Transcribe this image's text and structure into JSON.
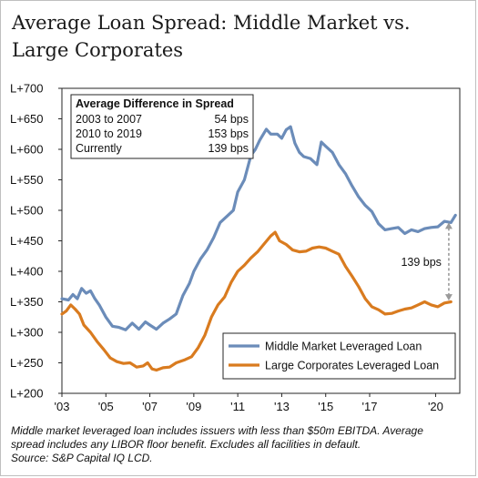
{
  "title": {
    "line1": "Average Loan Spread: Middle Market vs.",
    "line2": "Large Corporates"
  },
  "footnote": {
    "line1": "Middle market leveraged loan includes issuers with less than $50m EBITDA. Average",
    "line2": "spread includes any LIBOR floor benefit. Excludes all facilities in default.",
    "source": "Source: S&P Capital IQ LCD."
  },
  "chart_data": {
    "type": "line",
    "title": "Average Loan Spread: Middle Market vs. Large Corporates",
    "xlabel": "",
    "ylabel": "",
    "xlim": [
      2003,
      2021.1
    ],
    "ylim": [
      200,
      700
    ],
    "grid": false,
    "x_ticks": [
      2003,
      2005,
      2007,
      2009,
      2011,
      2013,
      2015,
      2017,
      2020
    ],
    "x_tick_labels": [
      "'03",
      "'05",
      "'07",
      "'09",
      "'11",
      "'13",
      "'15",
      "'17",
      "'20"
    ],
    "y_ticks": [
      200,
      250,
      300,
      350,
      400,
      450,
      500,
      550,
      600,
      650,
      700
    ],
    "y_tick_labels": [
      "L+200",
      "L+250",
      "L+300",
      "L+350",
      "L+400",
      "L+450",
      "L+500",
      "L+550",
      "L+600",
      "L+650",
      "L+700"
    ],
    "legend_position": "bottom-right",
    "series": [
      {
        "name": "Middle Market Leveraged Loan",
        "color": "#6b8cb9",
        "points": [
          [
            2003.0,
            355
          ],
          [
            2003.3,
            353
          ],
          [
            2003.5,
            362
          ],
          [
            2003.7,
            355
          ],
          [
            2003.9,
            372
          ],
          [
            2004.1,
            364
          ],
          [
            2004.3,
            368
          ],
          [
            2004.5,
            355
          ],
          [
            2004.7,
            345
          ],
          [
            2005.0,
            325
          ],
          [
            2005.3,
            310
          ],
          [
            2005.6,
            308
          ],
          [
            2005.9,
            304
          ],
          [
            2006.2,
            315
          ],
          [
            2006.5,
            305
          ],
          [
            2006.8,
            317
          ],
          [
            2007.0,
            312
          ],
          [
            2007.3,
            305
          ],
          [
            2007.6,
            315
          ],
          [
            2007.9,
            322
          ],
          [
            2008.2,
            330
          ],
          [
            2008.5,
            360
          ],
          [
            2008.8,
            380
          ],
          [
            2009.0,
            400
          ],
          [
            2009.3,
            420
          ],
          [
            2009.6,
            435
          ],
          [
            2009.9,
            455
          ],
          [
            2010.2,
            480
          ],
          [
            2010.5,
            490
          ],
          [
            2010.8,
            500
          ],
          [
            2011.0,
            530
          ],
          [
            2011.3,
            550
          ],
          [
            2011.6,
            590
          ],
          [
            2011.8,
            600
          ],
          [
            2012.0,
            615
          ],
          [
            2012.3,
            633
          ],
          [
            2012.5,
            625
          ],
          [
            2012.8,
            625
          ],
          [
            2013.0,
            618
          ],
          [
            2013.2,
            632
          ],
          [
            2013.4,
            637
          ],
          [
            2013.6,
            610
          ],
          [
            2013.8,
            595
          ],
          [
            2014.0,
            588
          ],
          [
            2014.3,
            585
          ],
          [
            2014.6,
            575
          ],
          [
            2014.8,
            612
          ],
          [
            2015.0,
            605
          ],
          [
            2015.3,
            595
          ],
          [
            2015.6,
            575
          ],
          [
            2015.9,
            560
          ],
          [
            2016.2,
            540
          ],
          [
            2016.5,
            522
          ],
          [
            2016.8,
            508
          ],
          [
            2017.1,
            498
          ],
          [
            2017.4,
            478
          ],
          [
            2017.7,
            468
          ],
          [
            2018.0,
            470
          ],
          [
            2018.3,
            472
          ],
          [
            2018.6,
            462
          ],
          [
            2018.9,
            468
          ],
          [
            2019.2,
            465
          ],
          [
            2019.5,
            470
          ],
          [
            2019.8,
            472
          ],
          [
            2020.1,
            473
          ],
          [
            2020.4,
            482
          ],
          [
            2020.7,
            480
          ],
          [
            2020.9,
            492
          ]
        ]
      },
      {
        "name": "Large Corporates Leveraged Loan",
        "color": "#d97b1f",
        "points": [
          [
            2003.0,
            330
          ],
          [
            2003.2,
            335
          ],
          [
            2003.4,
            345
          ],
          [
            2003.6,
            338
          ],
          [
            2003.8,
            330
          ],
          [
            2004.0,
            312
          ],
          [
            2004.3,
            300
          ],
          [
            2004.6,
            285
          ],
          [
            2004.9,
            272
          ],
          [
            2005.2,
            258
          ],
          [
            2005.5,
            252
          ],
          [
            2005.8,
            249
          ],
          [
            2006.1,
            250
          ],
          [
            2006.4,
            243
          ],
          [
            2006.7,
            245
          ],
          [
            2006.9,
            250
          ],
          [
            2007.1,
            240
          ],
          [
            2007.3,
            238
          ],
          [
            2007.6,
            242
          ],
          [
            2007.9,
            243
          ],
          [
            2008.2,
            250
          ],
          [
            2008.6,
            255
          ],
          [
            2008.9,
            260
          ],
          [
            2009.2,
            275
          ],
          [
            2009.5,
            295
          ],
          [
            2009.8,
            325
          ],
          [
            2010.1,
            345
          ],
          [
            2010.4,
            358
          ],
          [
            2010.7,
            382
          ],
          [
            2011.0,
            400
          ],
          [
            2011.3,
            410
          ],
          [
            2011.6,
            422
          ],
          [
            2011.9,
            432
          ],
          [
            2012.2,
            445
          ],
          [
            2012.5,
            458
          ],
          [
            2012.7,
            464
          ],
          [
            2012.9,
            450
          ],
          [
            2013.2,
            444
          ],
          [
            2013.5,
            435
          ],
          [
            2013.8,
            432
          ],
          [
            2014.1,
            433
          ],
          [
            2014.4,
            438
          ],
          [
            2014.7,
            440
          ],
          [
            2015.0,
            438
          ],
          [
            2015.3,
            433
          ],
          [
            2015.6,
            428
          ],
          [
            2015.9,
            408
          ],
          [
            2016.2,
            392
          ],
          [
            2016.5,
            375
          ],
          [
            2016.8,
            355
          ],
          [
            2017.1,
            342
          ],
          [
            2017.4,
            337
          ],
          [
            2017.7,
            330
          ],
          [
            2018.0,
            331
          ],
          [
            2018.3,
            335
          ],
          [
            2018.6,
            338
          ],
          [
            2018.9,
            340
          ],
          [
            2019.2,
            345
          ],
          [
            2019.5,
            350
          ],
          [
            2019.8,
            345
          ],
          [
            2020.1,
            342
          ],
          [
            2020.4,
            348
          ],
          [
            2020.7,
            350
          ]
        ]
      }
    ],
    "inset_table": {
      "header": "Average Difference in Spread",
      "rows": [
        {
          "label": "2003 to 2007",
          "value": "54 bps"
        },
        {
          "label": "2010 to 2019",
          "value": "153 bps"
        },
        {
          "label": "Currently",
          "value": "139 bps"
        }
      ]
    },
    "annotation": {
      "text": "139 bps",
      "x": 2020.6,
      "y_top": 480,
      "y_bottom": 352
    }
  }
}
